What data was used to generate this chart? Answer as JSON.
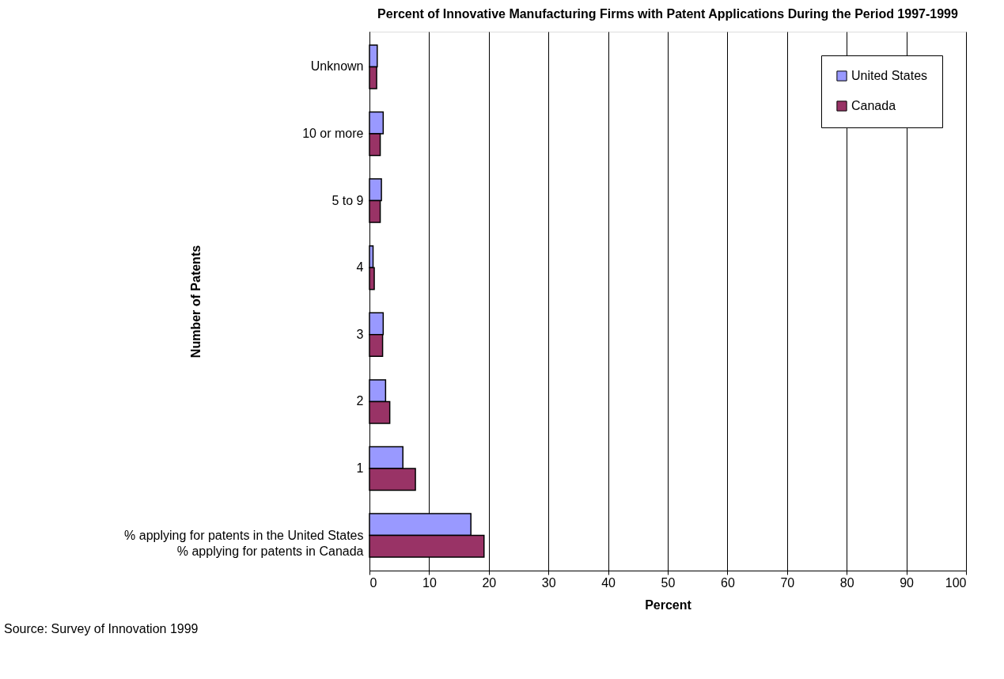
{
  "chart_data": {
    "type": "bar",
    "orientation": "horizontal",
    "title": "Percent of Innovative Manufacturing Firms with Patent Applications During the Period 1997-1999",
    "xlabel": "Percent",
    "ylabel": "Number of Patents",
    "categories": [
      "Unknown",
      "10 or more",
      "5 to 9",
      "4",
      "3",
      "2",
      "1",
      "% applying for patents in the United States\n% applying for patents in Canada"
    ],
    "series": [
      {
        "name": "United States",
        "color": "#9999ff",
        "values": [
          1.3,
          2.3,
          2.0,
          0.6,
          2.3,
          2.7,
          5.6,
          17.0
        ]
      },
      {
        "name": "Canada",
        "color": "#993366",
        "values": [
          1.2,
          1.8,
          1.8,
          0.8,
          2.2,
          3.4,
          7.7,
          19.2
        ]
      }
    ],
    "xlim": [
      0,
      100
    ],
    "xticks": [
      0,
      10,
      20,
      30,
      40,
      50,
      60,
      70,
      80,
      90,
      100
    ],
    "grid": "x",
    "legend": "top right",
    "annotations": [
      "Source:  Survey of Innovation 1999"
    ]
  }
}
